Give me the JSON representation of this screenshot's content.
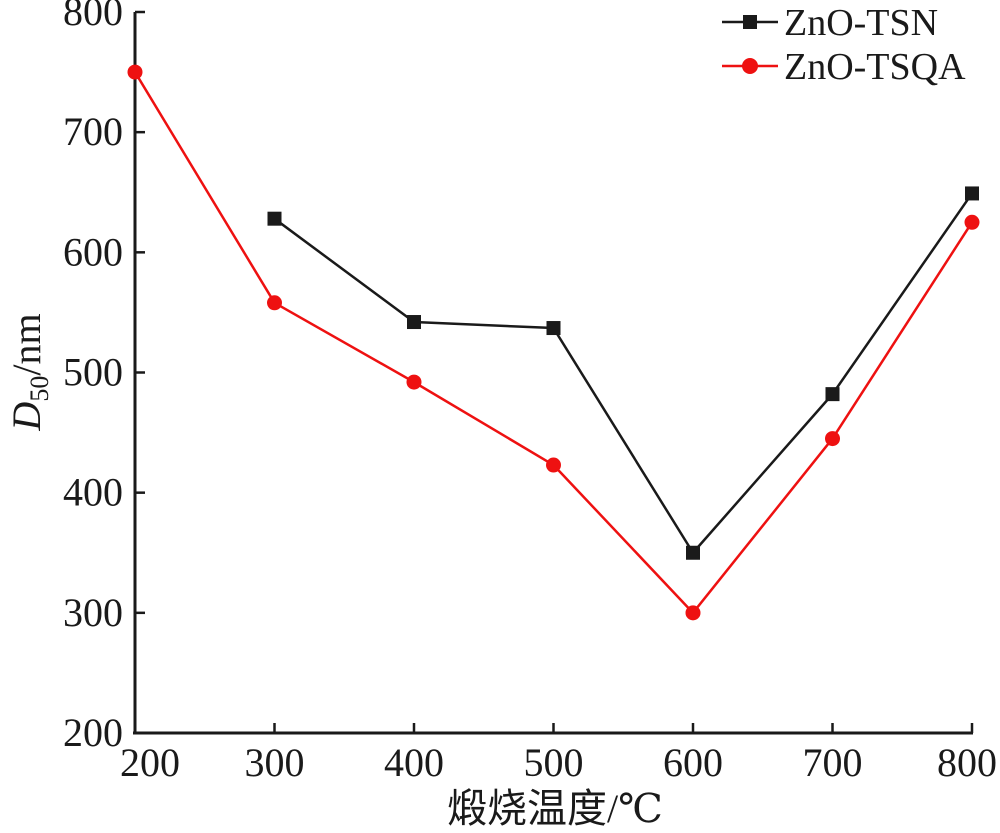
{
  "chart_data": {
    "type": "line",
    "x": [
      200,
      300,
      400,
      500,
      600,
      700,
      800
    ],
    "xticks": [
      "200",
      "300",
      "400",
      "500",
      "600",
      "700",
      "800"
    ],
    "yticks": [
      "200",
      "300",
      "400",
      "500",
      "600",
      "700",
      "800"
    ],
    "xlim": [
      200,
      800
    ],
    "ylim": [
      200,
      800
    ],
    "xlabel": "煅烧温度/℃",
    "ylabel_main": "D",
    "ylabel_sub": "50",
    "ylabel_unit": "/nm",
    "grid": false,
    "legend_position": "top-right",
    "series": [
      {
        "name": "ZnO-TSN",
        "color": "#1a1a1a",
        "marker": "square",
        "x": [
          300,
          400,
          500,
          600,
          700,
          800
        ],
        "values": [
          628,
          542,
          537,
          350,
          482,
          649
        ]
      },
      {
        "name": "ZnO-TSQA",
        "color": "#ee1111",
        "marker": "circle",
        "x": [
          200,
          300,
          400,
          500,
          600,
          700,
          800
        ],
        "values": [
          750,
          558,
          492,
          423,
          300,
          445,
          625
        ]
      }
    ]
  }
}
